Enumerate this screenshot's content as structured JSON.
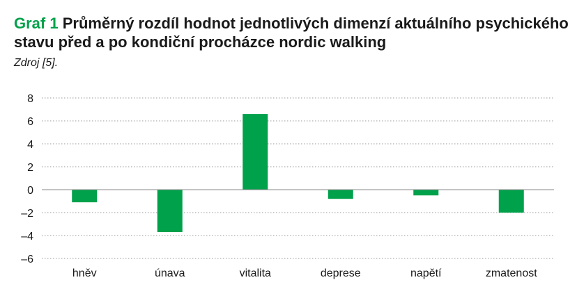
{
  "title": {
    "lead": "Graf 1",
    "text": "Průměrný rozdíl hodnot jednotlivých dimenzí aktuálního psychického stavu před a po kondiční procházce nordic walking"
  },
  "source": "Zdroj [5].",
  "colors": {
    "bar": "#00a14b",
    "grid": "#9a9a9a",
    "zero_line": "#888888"
  },
  "chart_data": {
    "type": "bar",
    "categories": [
      "hněv",
      "únava",
      "vitalita",
      "deprese",
      "napětí",
      "zmatenost"
    ],
    "values": [
      -1.1,
      -3.7,
      6.6,
      -0.8,
      -0.5,
      -2.0
    ],
    "ylim": [
      -6,
      8
    ],
    "yticks": [
      8,
      6,
      4,
      2,
      0,
      -2,
      -4,
      -6
    ],
    "ytick_labels": [
      "8",
      "6",
      "4",
      "2",
      "0",
      "–2",
      "–4",
      "–6"
    ],
    "grid": true,
    "grid_style": "dotted",
    "legend": false
  }
}
